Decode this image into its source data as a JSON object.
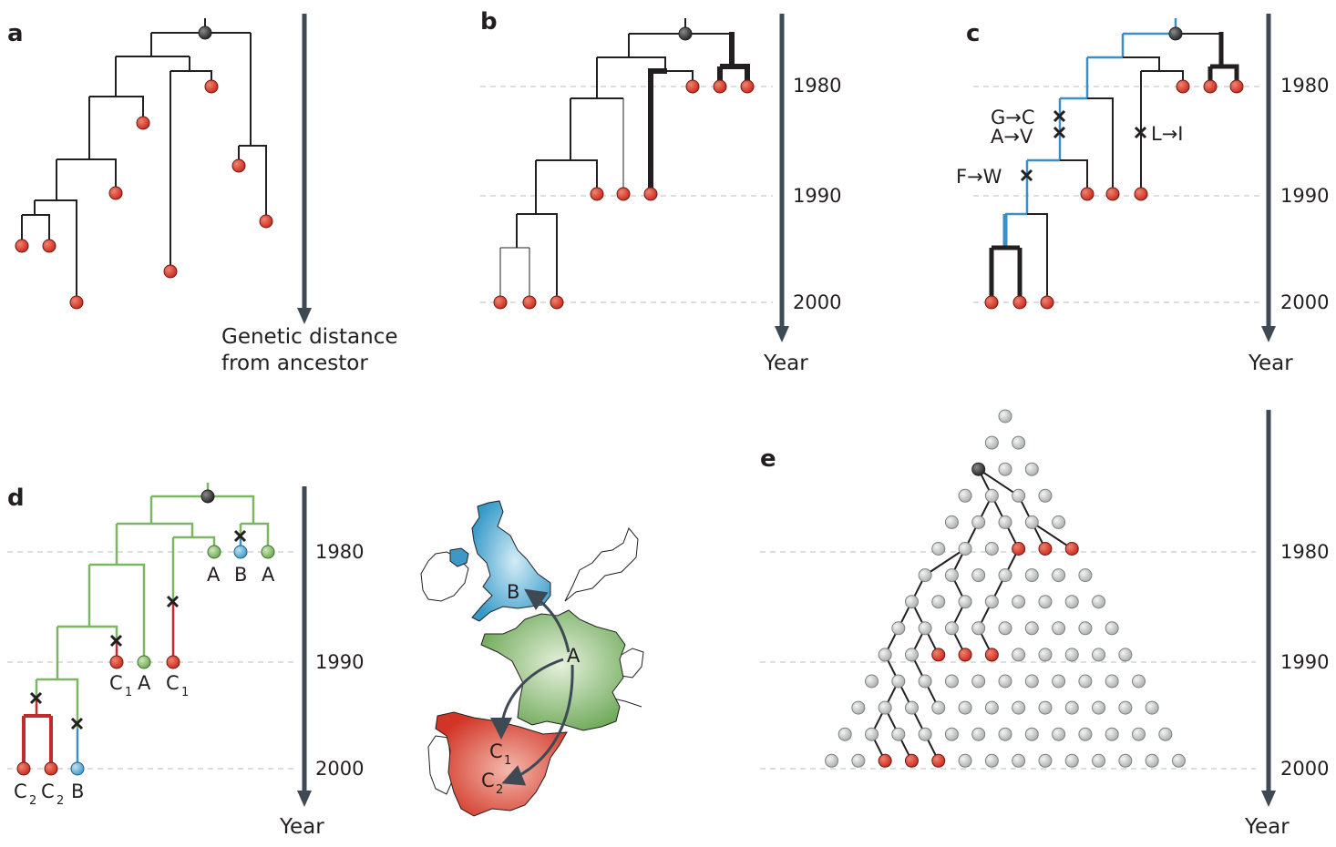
{
  "panels": {
    "a": {
      "label": "a",
      "axis_label_line1": "Genetic distance",
      "axis_label_line2": "from ancestor"
    },
    "b": {
      "label": "b",
      "years": [
        "1980",
        "1990",
        "2000"
      ],
      "axis_label": "Year"
    },
    "c": {
      "label": "c",
      "years": [
        "1980",
        "1990",
        "2000"
      ],
      "axis_label": "Year",
      "mutations": {
        "m1": "G→C",
        "m2": "A→V",
        "m3": "L→I",
        "m4": "F→W"
      }
    },
    "d": {
      "label": "d",
      "years": [
        "1980",
        "1990",
        "2000"
      ],
      "axis_label": "Year",
      "tips": [
        "A",
        "B",
        "A",
        "C",
        "A",
        "C",
        "C",
        "C",
        "B"
      ],
      "subscripts": [
        "1",
        "1",
        "2",
        "2"
      ],
      "map_labels": {
        "uk": "B",
        "france": "A",
        "spain1": "C",
        "spain2": "C"
      },
      "map_subscripts": {
        "spain1": "1",
        "spain2": "2"
      }
    },
    "e": {
      "label": "e",
      "years": [
        "1980",
        "1990",
        "2000"
      ],
      "axis_label": "Year"
    }
  },
  "colors": {
    "tip_red": "#d9392b",
    "root_dark": "#3b3b3b",
    "branch": "#231f20",
    "blue_branch": "#3b8fc4",
    "green_branch": "#7bb663",
    "red_branch": "#c6282b",
    "axis": "#3d4a54",
    "grid_dot": "#c9ccca",
    "uk": "#4aa6cf",
    "france": "#7fb56a",
    "spain": "#d43a2b"
  }
}
